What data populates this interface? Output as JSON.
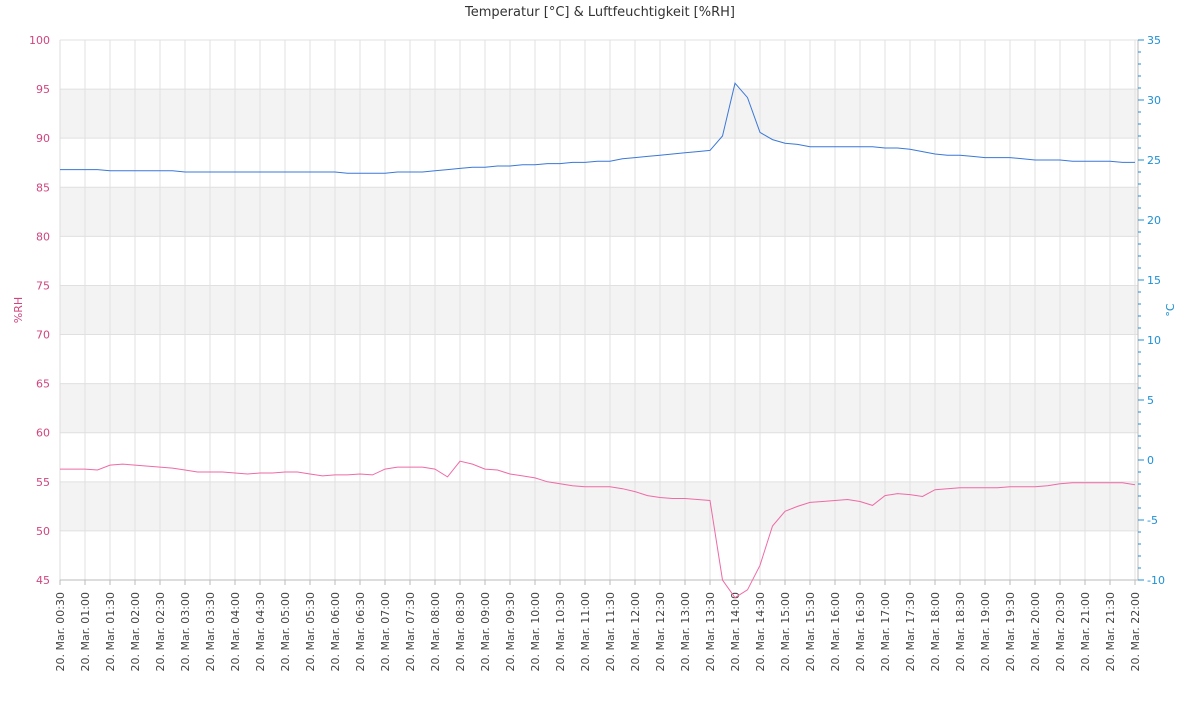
{
  "chart_data": {
    "type": "line",
    "title": "Temperatur [°C] & Luftfeuchtigkeit [%RH]",
    "ylabel": "%RH",
    "y2label": "°C",
    "yaxis_color": "#d0457f",
    "y2axis_color": "#1e8fd6",
    "grid": true,
    "alternate_bands": true,
    "y2_minor_ticks": true,
    "ylim": [
      45,
      100
    ],
    "yticks": [
      45,
      50,
      55,
      60,
      65,
      70,
      75,
      80,
      85,
      90,
      95,
      100
    ],
    "y2lim": [
      -10,
      35
    ],
    "y2ticks": [
      -10,
      -5,
      0,
      5,
      10,
      15,
      20,
      25,
      30,
      35
    ],
    "categories": [
      "20. Mar. 00:30",
      null,
      "20. Mar. 01:00",
      null,
      "20. Mar. 01:30",
      null,
      "20. Mar. 02:00",
      null,
      "20. Mar. 02:30",
      null,
      "20. Mar. 03:00",
      null,
      "20. Mar. 03:30",
      null,
      "20. Mar. 04:00",
      null,
      "20. Mar. 04:30",
      null,
      "20. Mar. 05:00",
      null,
      "20. Mar. 05:30",
      null,
      "20. Mar. 06:00",
      null,
      "20. Mar. 06:30",
      null,
      "20. Mar. 07:00",
      null,
      "20. Mar. 07:30",
      null,
      "20. Mar. 08:00",
      null,
      "20. Mar. 08:30",
      null,
      "20. Mar. 09:00",
      null,
      "20. Mar. 09:30",
      null,
      "20. Mar. 10:00",
      null,
      "20. Mar. 10:30",
      null,
      "20. Mar. 11:00",
      null,
      "20. Mar. 11:30",
      null,
      "20. Mar. 12:00",
      null,
      "20. Mar. 12:30",
      null,
      "20. Mar. 13:00",
      null,
      "20. Mar. 13:30",
      null,
      "20. Mar. 14:00",
      null,
      "20. Mar. 14:30",
      null,
      "20. Mar. 15:00",
      null,
      "20. Mar. 15:30",
      null,
      "20. Mar. 16:00",
      null,
      "20. Mar. 16:30",
      null,
      "20. Mar. 17:00",
      null,
      "20. Mar. 17:30",
      null,
      "20. Mar. 18:00",
      null,
      "20. Mar. 18:30",
      null,
      "20. Mar. 19:00",
      null,
      "20. Mar. 19:30",
      null,
      "20. Mar. 20:00",
      null,
      "20. Mar. 20:30",
      null,
      "20. Mar. 21:00",
      null,
      "20. Mar. 21:30",
      null,
      "20. Mar. 22:00"
    ],
    "series": [
      {
        "name": "%RH",
        "color": "#ef6aa6",
        "axis": "y",
        "values": [
          56.3,
          56.3,
          56.3,
          56.2,
          56.7,
          56.8,
          56.7,
          56.6,
          56.5,
          56.4,
          56.2,
          56.0,
          56.0,
          56.0,
          55.9,
          55.8,
          55.9,
          55.9,
          56.0,
          56.0,
          55.8,
          55.6,
          55.7,
          55.7,
          55.8,
          55.7,
          56.3,
          56.5,
          56.5,
          56.5,
          56.3,
          55.5,
          57.1,
          56.8,
          56.3,
          56.2,
          55.8,
          55.6,
          55.4,
          55.0,
          54.8,
          54.6,
          54.5,
          54.5,
          54.5,
          54.3,
          54.0,
          53.6,
          53.4,
          53.3,
          53.3,
          53.2,
          53.1,
          45.0,
          43.2,
          44.0,
          46.5,
          50.5,
          52.0,
          52.5,
          52.9,
          53.0,
          53.1,
          53.2,
          53.0,
          52.6,
          53.6,
          53.8,
          53.7,
          53.5,
          54.2,
          54.3,
          54.4,
          54.4,
          54.4,
          54.4,
          54.5,
          54.5,
          54.5,
          54.6,
          54.8,
          54.9,
          54.9,
          54.9,
          54.9,
          54.9,
          54.7
        ]
      },
      {
        "name": "°C",
        "color": "#3a78d8",
        "axis": "y2",
        "values": [
          24.2,
          24.2,
          24.2,
          24.2,
          24.1,
          24.1,
          24.1,
          24.1,
          24.1,
          24.1,
          24.0,
          24.0,
          24.0,
          24.0,
          24.0,
          24.0,
          24.0,
          24.0,
          24.0,
          24.0,
          24.0,
          24.0,
          24.0,
          23.9,
          23.9,
          23.9,
          23.9,
          24.0,
          24.0,
          24.0,
          24.1,
          24.2,
          24.3,
          24.4,
          24.4,
          24.5,
          24.5,
          24.6,
          24.6,
          24.7,
          24.7,
          24.8,
          24.8,
          24.9,
          24.9,
          25.1,
          25.2,
          25.3,
          25.4,
          25.5,
          25.6,
          25.7,
          25.8,
          27.0,
          31.4,
          30.2,
          27.3,
          26.7,
          26.4,
          26.3,
          26.1,
          26.1,
          26.1,
          26.1,
          26.1,
          26.1,
          26.0,
          26.0,
          25.9,
          25.7,
          25.5,
          25.4,
          25.4,
          25.3,
          25.2,
          25.2,
          25.2,
          25.1,
          25.0,
          25.0,
          25.0,
          24.9,
          24.9,
          24.9,
          24.9,
          24.8,
          24.8
        ]
      }
    ]
  }
}
